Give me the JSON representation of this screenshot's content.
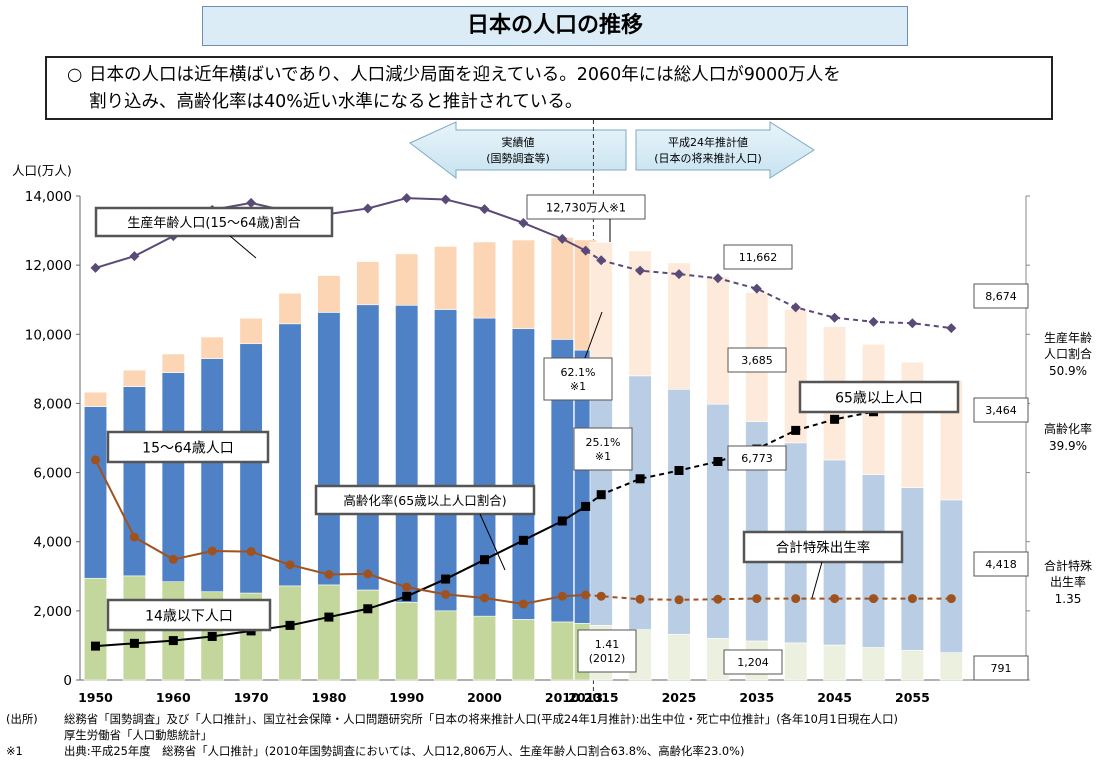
{
  "title": "日本の人口の推移",
  "summary": {
    "bullet": "○",
    "line1": "日本の人口は近年横ばいであり、人口減少局面を迎えている。2060年には総人口が9000万人を",
    "line2": "割り込み、高齢化率は40%近い水準になると推計されている。"
  },
  "arrows": {
    "actual": {
      "line1": "実績値",
      "line2": "(国勢調査等)"
    },
    "projection": {
      "line1": "平成24年推計値",
      "line2": "(日本の将来推計人口)"
    }
  },
  "notes": {
    "source_key": "(出所)",
    "source1": "総務省「国勢調査」及び「人口推計」、国立社会保障・人口問題研究所「日本の将来推計人口(平成24年1月推計):出生中位・死亡中位推計」(各年10月1日現在人口)",
    "source2": "厚生労働省「人口動態統計」",
    "note_key": "※1",
    "note1": "出典:平成25年度　総務省「人口推計」(2010年国勢調査においては、人口12,806万人、生産年齢人口割合63.8%、高齢化率23.0%)"
  },
  "chart_data": {
    "type": "bar",
    "stacked": true,
    "ylabel": "人口(万人)",
    "ylim": [
      0,
      14000
    ],
    "yticks": [
      "0",
      "2,000",
      "4,000",
      "6,000",
      "8,000",
      "10,000",
      "12,000",
      "14,000"
    ],
    "ytick_values": [
      0,
      2000,
      4000,
      6000,
      8000,
      10000,
      12000,
      14000
    ],
    "x_tick_labels": [
      "1950",
      "1960",
      "1970",
      "1980",
      "1990",
      "2000",
      "2010",
      "2013",
      "2015",
      "2025",
      "2035",
      "2045",
      "2055"
    ],
    "categories": [
      "1950",
      "1955",
      "1960",
      "1965",
      "1970",
      "1975",
      "1980",
      "1985",
      "1990",
      "1995",
      "2000",
      "2005",
      "2010",
      "2013",
      "2015",
      "2020",
      "2025",
      "2030",
      "2035",
      "2040",
      "2045",
      "2050",
      "2055",
      "2060"
    ],
    "projection_start_index": 14,
    "series": [
      {
        "name": "14歳以下人口",
        "values": [
          2943,
          3012,
          2843,
          2553,
          2515,
          2722,
          2751,
          2603,
          2249,
          2001,
          1847,
          1752,
          1680,
          1639,
          1583,
          1457,
          1324,
          1204,
          1129,
          1073,
          1012,
          939,
          861,
          791
        ]
      },
      {
        "name": "15〜64歳人口",
        "values": [
          4966,
          5473,
          6047,
          6744,
          7212,
          7581,
          7883,
          8251,
          8590,
          8716,
          8622,
          8409,
          8173,
          7901,
          7682,
          7341,
          7085,
          6773,
          6343,
          5787,
          5353,
          5001,
          4706,
          4418
        ]
      },
      {
        "name": "65歳以上人口",
        "values": [
          416,
          479,
          540,
          624,
          739,
          887,
          1065,
          1247,
          1489,
          1826,
          2201,
          2567,
          2948,
          3190,
          3395,
          3612,
          3657,
          3685,
          3741,
          3868,
          3856,
          3768,
          3626,
          3464
        ]
      },
      {
        "name": "生産年齢人口(15〜64歳)割合",
        "unit": "%",
        "values": [
          59.6,
          61.3,
          64.2,
          68.0,
          69.0,
          67.7,
          67.4,
          68.2,
          69.7,
          69.5,
          68.1,
          66.1,
          63.8,
          62.1,
          60.7,
          59.2,
          58.7,
          58.1,
          56.6,
          53.9,
          52.4,
          51.8,
          51.6,
          50.9
        ]
      },
      {
        "name": "高齢化率(65歳以上人口割合)",
        "unit": "%",
        "values": [
          4.9,
          5.3,
          5.7,
          6.3,
          7.1,
          7.9,
          9.1,
          10.3,
          12.1,
          14.6,
          17.4,
          20.2,
          23.0,
          25.1,
          26.8,
          29.1,
          30.3,
          31.6,
          33.4,
          36.1,
          37.7,
          38.8,
          39.4,
          39.9
        ]
      },
      {
        "name": "合計特殊出生率",
        "values": [
          3.65,
          2.37,
          2.0,
          2.14,
          2.13,
          1.91,
          1.75,
          1.76,
          1.54,
          1.42,
          1.36,
          1.26,
          1.39,
          1.41,
          1.39,
          1.34,
          1.33,
          1.34,
          1.35,
          1.35,
          1.35,
          1.35,
          1.35,
          1.35
        ]
      }
    ],
    "labels": {
      "total_2013": "12,730万人※1",
      "v2025_total": "11,662",
      "v2030_65": "3,685",
      "v2030_1564": "6,773",
      "v2030_14": "1,204",
      "v2060_total": "8,674",
      "v2060_65": "3,464",
      "v2060_1564": "4,418",
      "v2060_14": "791",
      "wr2013": "62.1%",
      "wr2013_note": "※1",
      "ar2013": "25.1%",
      "ar2013_note": "※1",
      "tfr2012": "1.41",
      "tfr2012_year": "(2012)",
      "series_wr": "生産年齢人口(15〜64歳)割合",
      "series_1564": "15〜64歳人口",
      "series_aging": "高齢化率(65歳以上人口割合)",
      "series_tfr": "合計特殊出生率",
      "series_14": "14歳以下人口",
      "series_65": "65歳以上人口",
      "right_wr_1": "生産年齢",
      "right_wr_2": "人口割合",
      "right_wr_3": "50.9%",
      "right_ar_1": "高齢化率",
      "right_ar_2": "39.9%",
      "right_tfr_1": "合計特殊",
      "right_tfr_2": "出生率",
      "right_tfr_3": "1.35"
    },
    "colors": {
      "age14": "#c3d69b",
      "age14_proj": "#ebf1de",
      "age1564": "#4f81c7",
      "age1564_proj": "#b9cde5",
      "age65": "#fcd5b4",
      "age65_proj": "#fdeada",
      "working_ratio_line": "#5a4a78",
      "aging_rate_line": "#000000",
      "tfr_line": "#a0521e"
    }
  }
}
